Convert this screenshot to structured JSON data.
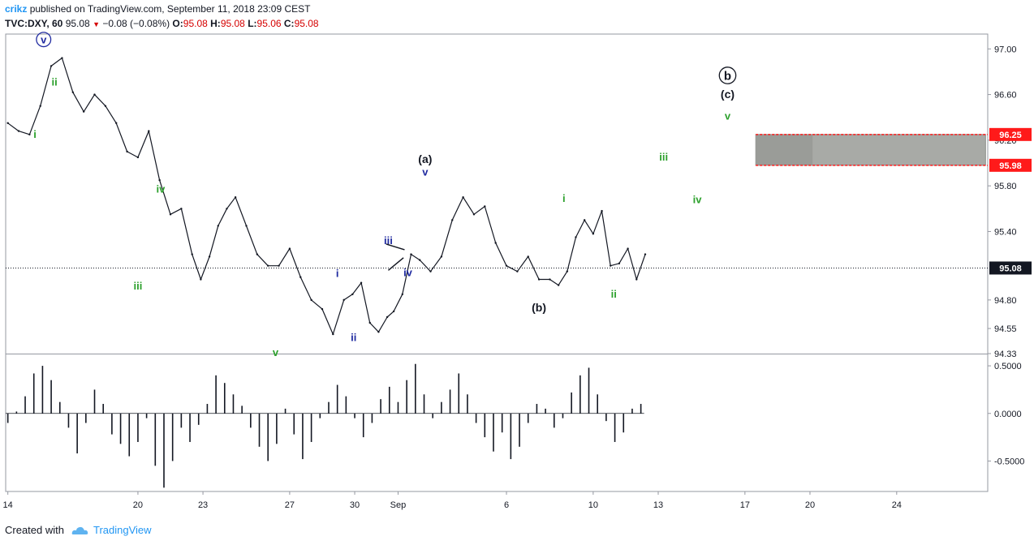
{
  "header": {
    "author": "crikz",
    "published_text": "published on TradingView.com, September 11, 2018 23:09 CEST",
    "symbol": "TVC:DXY, 60",
    "last": "95.08",
    "change": "−0.08 (−0.08%)",
    "o_label": "O:",
    "o_value": "95.08",
    "h_label": "H:",
    "h_value": "95.08",
    "l_label": "L:",
    "l_value": "95.06",
    "c_label": "C:",
    "c_value": "95.08"
  },
  "footer": {
    "created_with": "Created with",
    "brand": "TradingView"
  },
  "colors": {
    "green": "#2ca02c",
    "blue": "#1f2aa0",
    "black": "#131722",
    "red": "#ff1a1a",
    "box": "#a8aaa6"
  },
  "chart_data": {
    "type": "line",
    "title": "",
    "x_ticks": [
      {
        "label": "14",
        "day": 14
      },
      {
        "label": "20",
        "day": 20
      },
      {
        "label": "23",
        "day": 23
      },
      {
        "label": "27",
        "day": 27
      },
      {
        "label": "30",
        "day": 30
      },
      {
        "label": "Sep",
        "day": 32
      },
      {
        "label": "6",
        "day": 37
      },
      {
        "label": "10",
        "day": 41
      },
      {
        "label": "13",
        "day": 44
      },
      {
        "label": "17",
        "day": 48
      },
      {
        "label": "20",
        "day": 51
      },
      {
        "label": "24",
        "day": 55
      }
    ],
    "x_range": [
      13.9,
      59.2
    ],
    "price_axis": {
      "ylim": [
        94.33,
        97.13
      ],
      "ticks": [
        {
          "label": "97.00",
          "value": 97.0
        },
        {
          "label": "96.60",
          "value": 96.6
        },
        {
          "label": "96.20",
          "value": 96.2
        },
        {
          "label": "95.80",
          "value": 95.8
        },
        {
          "label": "95.40",
          "value": 95.4
        },
        {
          "label": "94.80",
          "value": 94.8
        },
        {
          "label": "94.55",
          "value": 94.55
        },
        {
          "label": "94.33",
          "value": 94.33
        }
      ]
    },
    "current_price": {
      "label": "95.08",
      "value": 95.08
    },
    "target_zone": {
      "x_start": 48.5,
      "x_end": 59.1,
      "upper": 96.25,
      "lower": 95.98,
      "upper_label": "96.25",
      "lower_label": "95.98"
    },
    "price_series": {
      "x": [
        14,
        14.5,
        15,
        15.5,
        16,
        16.5,
        17,
        17.5,
        18,
        18.5,
        19,
        19.5,
        20,
        20.5,
        21,
        21.5,
        22,
        22.5,
        22.9,
        23.3,
        23.7,
        24.1,
        24.5,
        25,
        25.5,
        26,
        26.5,
        27,
        27.5,
        28,
        28.5,
        29,
        29.5,
        29.9,
        30.3,
        30.7,
        31.1,
        31.5,
        31.8,
        32.2,
        32.6,
        33,
        33.5,
        34,
        34.5,
        35,
        35.5,
        36,
        36.5,
        37,
        37.5,
        38,
        38.5,
        39,
        39.4,
        39.8,
        40.2,
        40.6,
        41,
        41.4,
        41.8,
        42.2,
        42.6,
        43,
        43.4
      ],
      "y": [
        96.35,
        96.28,
        96.25,
        96.5,
        96.85,
        96.92,
        96.62,
        96.45,
        96.6,
        96.5,
        96.35,
        96.1,
        96.05,
        96.28,
        95.85,
        95.55,
        95.6,
        95.2,
        94.98,
        95.18,
        95.45,
        95.6,
        95.7,
        95.45,
        95.2,
        95.1,
        95.1,
        95.25,
        95.0,
        94.8,
        94.72,
        94.5,
        94.8,
        94.85,
        94.95,
        94.6,
        94.52,
        94.65,
        94.7,
        94.85,
        95.2,
        95.15,
        95.05,
        95.18,
        95.5,
        95.7,
        95.55,
        95.62,
        95.3,
        95.1,
        95.05,
        95.18,
        94.98,
        94.98,
        94.93,
        95.05,
        95.35,
        95.5,
        95.38,
        95.58,
        95.1,
        95.12,
        95.25,
        94.98,
        95.2
      ]
    },
    "oscillator": {
      "ylim": [
        -0.82,
        0.62
      ],
      "ticks": [
        {
          "label": "0.5000",
          "value": 0.5
        },
        {
          "label": "0.0000",
          "value": 0.0
        },
        {
          "label": "-0.5000",
          "value": -0.5
        }
      ],
      "x": [
        14,
        14.4,
        14.8,
        15.2,
        15.6,
        16,
        16.4,
        16.8,
        17.2,
        17.6,
        18,
        18.4,
        18.8,
        19.2,
        19.6,
        20,
        20.4,
        20.8,
        21.2,
        21.6,
        22,
        22.4,
        22.8,
        23.2,
        23.6,
        24,
        24.4,
        24.8,
        25.2,
        25.6,
        26,
        26.4,
        26.8,
        27.2,
        27.6,
        28,
        28.4,
        28.8,
        29.2,
        29.6,
        30,
        30.4,
        30.8,
        31.2,
        31.6,
        32,
        32.4,
        32.8,
        33.2,
        33.6,
        34,
        34.4,
        34.8,
        35.2,
        35.6,
        36,
        36.4,
        36.8,
        37.2,
        37.6,
        38,
        38.4,
        38.8,
        39.2,
        39.6,
        40,
        40.4,
        40.8,
        41.2,
        41.6,
        42,
        42.4,
        42.8,
        43.2
      ],
      "values": [
        -0.1,
        0.02,
        0.18,
        0.42,
        0.5,
        0.35,
        0.12,
        -0.15,
        -0.42,
        -0.1,
        0.25,
        0.1,
        -0.22,
        -0.32,
        -0.45,
        -0.3,
        -0.05,
        -0.55,
        -0.78,
        -0.5,
        -0.15,
        -0.3,
        -0.12,
        0.1,
        0.4,
        0.32,
        0.2,
        0.08,
        -0.15,
        -0.35,
        -0.5,
        -0.32,
        0.05,
        -0.22,
        -0.48,
        -0.3,
        -0.05,
        0.12,
        0.3,
        0.18,
        -0.05,
        -0.25,
        -0.1,
        0.15,
        0.28,
        0.12,
        0.35,
        0.52,
        0.2,
        -0.05,
        0.12,
        0.25,
        0.42,
        0.2,
        -0.1,
        -0.25,
        -0.4,
        -0.2,
        -0.48,
        -0.35,
        -0.1,
        0.1,
        0.05,
        -0.15,
        -0.05,
        0.22,
        0.4,
        0.48,
        0.2,
        -0.08,
        -0.3,
        -0.2,
        0.05,
        0.1
      ]
    },
    "wave_labels": [
      {
        "text": "v",
        "day": 15.65,
        "price": 97.05,
        "color": "blue",
        "circled": true,
        "size": 13
      },
      {
        "text": "ii",
        "day": 16.15,
        "price": 96.68,
        "color": "green"
      },
      {
        "text": "i",
        "day": 15.25,
        "price": 96.22,
        "color": "green"
      },
      {
        "text": "iv",
        "day": 21.05,
        "price": 95.74,
        "color": "green"
      },
      {
        "text": "iii",
        "day": 20.0,
        "price": 94.89,
        "color": "green"
      },
      {
        "text": "v",
        "day": 26.35,
        "price": 94.31,
        "color": "green"
      },
      {
        "text": "i",
        "day": 29.2,
        "price": 95.0,
        "color": "blue"
      },
      {
        "text": "ii",
        "day": 29.95,
        "price": 94.44,
        "color": "blue"
      },
      {
        "text": "iii",
        "day": 31.55,
        "price": 95.29,
        "color": "blue"
      },
      {
        "text": "iv",
        "day": 32.45,
        "price": 95.01,
        "color": "blue"
      },
      {
        "text": "(a)",
        "day": 33.25,
        "price": 96.0,
        "color": "black",
        "size": 14
      },
      {
        "text": "v",
        "day": 33.25,
        "price": 95.89,
        "color": "blue"
      },
      {
        "text": "(b)",
        "day": 38.5,
        "price": 94.7,
        "color": "black",
        "size": 14
      },
      {
        "text": "i",
        "day": 39.65,
        "price": 95.66,
        "color": "green"
      },
      {
        "text": "ii",
        "day": 41.95,
        "price": 94.82,
        "color": "green"
      },
      {
        "text": "iii",
        "day": 44.25,
        "price": 96.02,
        "color": "green"
      },
      {
        "text": "iv",
        "day": 45.8,
        "price": 95.65,
        "color": "green"
      },
      {
        "text": "b",
        "day": 47.2,
        "price": 96.73,
        "color": "black",
        "circled": true,
        "size": 15
      },
      {
        "text": "(c)",
        "day": 47.2,
        "price": 96.57,
        "color": "black",
        "size": 14
      },
      {
        "text": "v",
        "day": 47.2,
        "price": 96.38,
        "color": "green"
      }
    ],
    "triangle": [
      {
        "day": 31.45,
        "price": 95.29
      },
      {
        "day": 32.3,
        "price": 95.24
      },
      {
        "day": 31.55,
        "price": 95.06
      },
      {
        "day": 32.25,
        "price": 95.17
      }
    ]
  }
}
